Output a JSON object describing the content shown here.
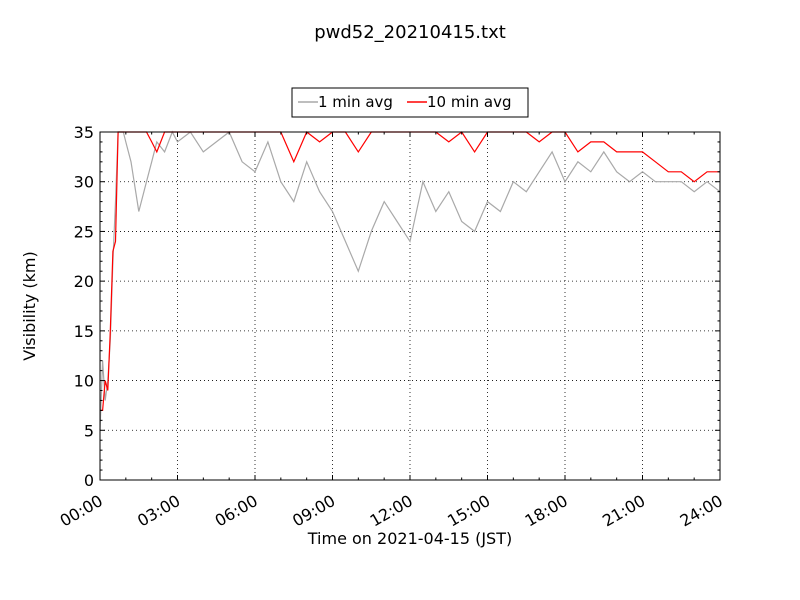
{
  "chart_data": {
    "type": "line",
    "title": "pwd52_20210415.txt",
    "xlabel": "Time on 2021-04-15 (JST)",
    "ylabel": "Visibility (km)",
    "xlim_hours": [
      0,
      24
    ],
    "ylim": [
      0,
      35
    ],
    "x_ticks": [
      "00:00",
      "03:00",
      "06:00",
      "09:00",
      "12:00",
      "15:00",
      "18:00",
      "21:00",
      "24:00"
    ],
    "y_ticks": [
      0,
      5,
      10,
      15,
      20,
      25,
      30,
      35
    ],
    "grid": true,
    "legend_position": "top-center",
    "colors": {
      "one_min": "#a9a9a9",
      "ten_min": "#ff0000"
    },
    "series": [
      {
        "name": "1 min avg",
        "x_hours": [
          0.0,
          0.1,
          0.2,
          0.3,
          0.4,
          0.5,
          0.6,
          0.7,
          0.8,
          0.9,
          1.0,
          1.2,
          1.5,
          1.8,
          2.0,
          2.2,
          2.5,
          2.8,
          3.0,
          3.5,
          4.0,
          4.5,
          5.0,
          5.5,
          6.0,
          6.5,
          7.0,
          7.5,
          8.0,
          8.5,
          9.0,
          9.5,
          10.0,
          10.5,
          11.0,
          11.5,
          12.0,
          12.5,
          13.0,
          13.5,
          14.0,
          14.5,
          15.0,
          15.5,
          16.0,
          16.5,
          17.0,
          17.5,
          18.0,
          18.5,
          19.0,
          19.5,
          20.0,
          20.5,
          21.0,
          21.5,
          22.0,
          22.5,
          23.0,
          23.5,
          24.0
        ],
        "values": [
          5,
          12,
          8,
          10,
          14,
          22,
          28,
          35,
          35,
          35,
          34,
          32,
          27,
          30,
          32,
          34,
          33,
          35,
          34,
          35,
          33,
          34,
          35,
          32,
          31,
          34,
          30,
          28,
          32,
          29,
          27,
          24,
          21,
          25,
          28,
          26,
          24,
          30,
          27,
          29,
          26,
          25,
          28,
          27,
          30,
          29,
          31,
          33,
          30,
          32,
          31,
          33,
          31,
          30,
          31,
          30,
          30,
          30,
          29,
          30,
          29
        ]
      },
      {
        "name": "10 min avg",
        "x_hours": [
          0.0,
          0.1,
          0.2,
          0.3,
          0.4,
          0.5,
          0.6,
          0.7,
          0.8,
          0.9,
          1.0,
          1.2,
          1.5,
          1.8,
          2.0,
          2.2,
          2.5,
          2.8,
          3.0,
          3.5,
          4.0,
          4.5,
          5.0,
          5.5,
          6.0,
          6.5,
          7.0,
          7.5,
          8.0,
          8.5,
          9.0,
          9.5,
          10.0,
          10.5,
          11.0,
          11.5,
          12.0,
          12.5,
          13.0,
          13.5,
          14.0,
          14.5,
          15.0,
          15.5,
          16.0,
          16.5,
          17.0,
          17.5,
          18.0,
          18.5,
          19.0,
          19.5,
          20.0,
          20.5,
          21.0,
          21.5,
          22.0,
          22.5,
          23.0,
          23.5,
          24.0
        ],
        "values": [
          7,
          7,
          10,
          9,
          15,
          23,
          24,
          35,
          35,
          35,
          35,
          35,
          35,
          35,
          34,
          33,
          35,
          35,
          35,
          35,
          35,
          35,
          35,
          35,
          35,
          35,
          35,
          32,
          35,
          34,
          35,
          35,
          33,
          35,
          35,
          35,
          35,
          35,
          35,
          34,
          35,
          33,
          35,
          35,
          35,
          35,
          34,
          35,
          35,
          33,
          34,
          34,
          33,
          33,
          33,
          32,
          31,
          31,
          30,
          31,
          31
        ]
      }
    ]
  }
}
